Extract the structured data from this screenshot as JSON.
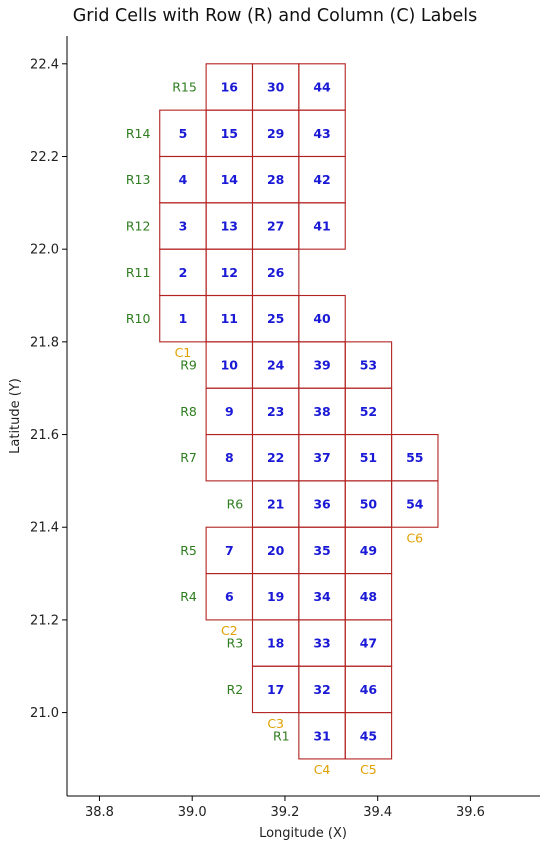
{
  "chart_data": {
    "type": "scatter",
    "title": "Grid Cells with Row (R) and Column (C) Labels",
    "xlabel": "Longitude (X)",
    "ylabel": "Latitude (Y)",
    "xlim": [
      38.73,
      39.75
    ],
    "ylim": [
      20.82,
      22.46
    ],
    "xticks": [
      "38.8",
      "39.0",
      "39.2",
      "39.4",
      "39.6"
    ],
    "yticks": [
      "21.0",
      "21.2",
      "21.4",
      "21.6",
      "21.8",
      "22.0",
      "22.2",
      "22.4"
    ],
    "grid": false,
    "colors": {
      "cell_edge": "#b22222",
      "cell_label": "#1a1ad6",
      "row_label": "#2e7d1f",
      "col_label": "#e0a000"
    },
    "cells": [
      {
        "id": "1",
        "x0": 38.93,
        "x1": 39.03,
        "y0": 21.8,
        "y1": 21.9
      },
      {
        "id": "2",
        "x0": 38.93,
        "x1": 39.03,
        "y0": 21.9,
        "y1": 22.0
      },
      {
        "id": "3",
        "x0": 38.93,
        "x1": 39.03,
        "y0": 22.0,
        "y1": 22.1
      },
      {
        "id": "4",
        "x0": 38.93,
        "x1": 39.03,
        "y0": 22.1,
        "y1": 22.2
      },
      {
        "id": "5",
        "x0": 38.93,
        "x1": 39.03,
        "y0": 22.2,
        "y1": 22.3
      },
      {
        "id": "6",
        "x0": 39.03,
        "x1": 39.13,
        "y0": 21.2,
        "y1": 21.3
      },
      {
        "id": "7",
        "x0": 39.03,
        "x1": 39.13,
        "y0": 21.3,
        "y1": 21.4
      },
      {
        "id": "8",
        "x0": 39.03,
        "x1": 39.13,
        "y0": 21.5,
        "y1": 21.6
      },
      {
        "id": "9",
        "x0": 39.03,
        "x1": 39.13,
        "y0": 21.6,
        "y1": 21.7
      },
      {
        "id": "10",
        "x0": 39.03,
        "x1": 39.13,
        "y0": 21.7,
        "y1": 21.8
      },
      {
        "id": "11",
        "x0": 39.03,
        "x1": 39.13,
        "y0": 21.8,
        "y1": 21.9
      },
      {
        "id": "12",
        "x0": 39.03,
        "x1": 39.13,
        "y0": 21.9,
        "y1": 22.0
      },
      {
        "id": "13",
        "x0": 39.03,
        "x1": 39.13,
        "y0": 22.0,
        "y1": 22.1
      },
      {
        "id": "14",
        "x0": 39.03,
        "x1": 39.13,
        "y0": 22.1,
        "y1": 22.2
      },
      {
        "id": "15",
        "x0": 39.03,
        "x1": 39.13,
        "y0": 22.2,
        "y1": 22.3
      },
      {
        "id": "16",
        "x0": 39.03,
        "x1": 39.13,
        "y0": 22.3,
        "y1": 22.4
      },
      {
        "id": "17",
        "x0": 39.13,
        "x1": 39.23,
        "y0": 21.0,
        "y1": 21.1
      },
      {
        "id": "18",
        "x0": 39.13,
        "x1": 39.23,
        "y0": 21.1,
        "y1": 21.2
      },
      {
        "id": "19",
        "x0": 39.13,
        "x1": 39.23,
        "y0": 21.2,
        "y1": 21.3
      },
      {
        "id": "20",
        "x0": 39.13,
        "x1": 39.23,
        "y0": 21.3,
        "y1": 21.4
      },
      {
        "id": "21",
        "x0": 39.13,
        "x1": 39.23,
        "y0": 21.4,
        "y1": 21.5
      },
      {
        "id": "22",
        "x0": 39.13,
        "x1": 39.23,
        "y0": 21.5,
        "y1": 21.6
      },
      {
        "id": "23",
        "x0": 39.13,
        "x1": 39.23,
        "y0": 21.6,
        "y1": 21.7
      },
      {
        "id": "24",
        "x0": 39.13,
        "x1": 39.23,
        "y0": 21.7,
        "y1": 21.8
      },
      {
        "id": "25",
        "x0": 39.13,
        "x1": 39.23,
        "y0": 21.8,
        "y1": 21.9
      },
      {
        "id": "26",
        "x0": 39.13,
        "x1": 39.23,
        "y0": 21.9,
        "y1": 22.0
      },
      {
        "id": "27",
        "x0": 39.13,
        "x1": 39.23,
        "y0": 22.0,
        "y1": 22.1
      },
      {
        "id": "28",
        "x0": 39.13,
        "x1": 39.23,
        "y0": 22.1,
        "y1": 22.2
      },
      {
        "id": "29",
        "x0": 39.13,
        "x1": 39.23,
        "y0": 22.2,
        "y1": 22.3
      },
      {
        "id": "30",
        "x0": 39.13,
        "x1": 39.23,
        "y0": 22.3,
        "y1": 22.4
      },
      {
        "id": "31",
        "x0": 39.23,
        "x1": 39.33,
        "y0": 20.9,
        "y1": 21.0
      },
      {
        "id": "32",
        "x0": 39.23,
        "x1": 39.33,
        "y0": 21.0,
        "y1": 21.1
      },
      {
        "id": "33",
        "x0": 39.23,
        "x1": 39.33,
        "y0": 21.1,
        "y1": 21.2
      },
      {
        "id": "34",
        "x0": 39.23,
        "x1": 39.33,
        "y0": 21.2,
        "y1": 21.3
      },
      {
        "id": "35",
        "x0": 39.23,
        "x1": 39.33,
        "y0": 21.3,
        "y1": 21.4
      },
      {
        "id": "36",
        "x0": 39.23,
        "x1": 39.33,
        "y0": 21.4,
        "y1": 21.5
      },
      {
        "id": "37",
        "x0": 39.23,
        "x1": 39.33,
        "y0": 21.5,
        "y1": 21.6
      },
      {
        "id": "38",
        "x0": 39.23,
        "x1": 39.33,
        "y0": 21.6,
        "y1": 21.7
      },
      {
        "id": "39",
        "x0": 39.23,
        "x1": 39.33,
        "y0": 21.7,
        "y1": 21.8
      },
      {
        "id": "40",
        "x0": 39.23,
        "x1": 39.33,
        "y0": 21.8,
        "y1": 21.9
      },
      {
        "id": "41",
        "x0": 39.23,
        "x1": 39.33,
        "y0": 22.0,
        "y1": 22.1
      },
      {
        "id": "42",
        "x0": 39.23,
        "x1": 39.33,
        "y0": 22.1,
        "y1": 22.2
      },
      {
        "id": "43",
        "x0": 39.23,
        "x1": 39.33,
        "y0": 22.2,
        "y1": 22.3
      },
      {
        "id": "44",
        "x0": 39.23,
        "x1": 39.33,
        "y0": 22.3,
        "y1": 22.4
      },
      {
        "id": "45",
        "x0": 39.33,
        "x1": 39.43,
        "y0": 20.9,
        "y1": 21.0
      },
      {
        "id": "46",
        "x0": 39.33,
        "x1": 39.43,
        "y0": 21.0,
        "y1": 21.1
      },
      {
        "id": "47",
        "x0": 39.33,
        "x1": 39.43,
        "y0": 21.1,
        "y1": 21.2
      },
      {
        "id": "48",
        "x0": 39.33,
        "x1": 39.43,
        "y0": 21.2,
        "y1": 21.3
      },
      {
        "id": "49",
        "x0": 39.33,
        "x1": 39.43,
        "y0": 21.3,
        "y1": 21.4
      },
      {
        "id": "50",
        "x0": 39.33,
        "x1": 39.43,
        "y0": 21.4,
        "y1": 21.5
      },
      {
        "id": "51",
        "x0": 39.33,
        "x1": 39.43,
        "y0": 21.5,
        "y1": 21.6
      },
      {
        "id": "52",
        "x0": 39.33,
        "x1": 39.43,
        "y0": 21.6,
        "y1": 21.7
      },
      {
        "id": "53",
        "x0": 39.33,
        "x1": 39.43,
        "y0": 21.7,
        "y1": 21.8
      },
      {
        "id": "54",
        "x0": 39.43,
        "x1": 39.53,
        "y0": 21.4,
        "y1": 21.5
      },
      {
        "id": "55",
        "x0": 39.43,
        "x1": 39.53,
        "y0": 21.5,
        "y1": 21.6
      }
    ],
    "row_labels": [
      {
        "text": "R1",
        "x": 39.21,
        "y": 20.95
      },
      {
        "text": "R2",
        "x": 39.11,
        "y": 21.05
      },
      {
        "text": "R3",
        "x": 39.11,
        "y": 21.15
      },
      {
        "text": "R4",
        "x": 39.01,
        "y": 21.25
      },
      {
        "text": "R5",
        "x": 39.01,
        "y": 21.35
      },
      {
        "text": "R6",
        "x": 39.11,
        "y": 21.45
      },
      {
        "text": "R7",
        "x": 39.01,
        "y": 21.55
      },
      {
        "text": "R8",
        "x": 39.01,
        "y": 21.65
      },
      {
        "text": "R9",
        "x": 39.01,
        "y": 21.75
      },
      {
        "text": "R10",
        "x": 38.91,
        "y": 21.85
      },
      {
        "text": "R11",
        "x": 38.91,
        "y": 21.95
      },
      {
        "text": "R12",
        "x": 38.91,
        "y": 22.05
      },
      {
        "text": "R13",
        "x": 38.91,
        "y": 22.15
      },
      {
        "text": "R14",
        "x": 38.91,
        "y": 22.25
      },
      {
        "text": "R15",
        "x": 39.01,
        "y": 22.35
      }
    ],
    "col_labels": [
      {
        "text": "C1",
        "x": 38.98,
        "y": 21.78
      },
      {
        "text": "C2",
        "x": 39.08,
        "y": 21.18
      },
      {
        "text": "C3",
        "x": 39.18,
        "y": 20.98
      },
      {
        "text": "C4",
        "x": 39.28,
        "y": 20.88
      },
      {
        "text": "C5",
        "x": 39.38,
        "y": 20.88
      },
      {
        "text": "C6",
        "x": 39.48,
        "y": 21.38
      }
    ]
  }
}
